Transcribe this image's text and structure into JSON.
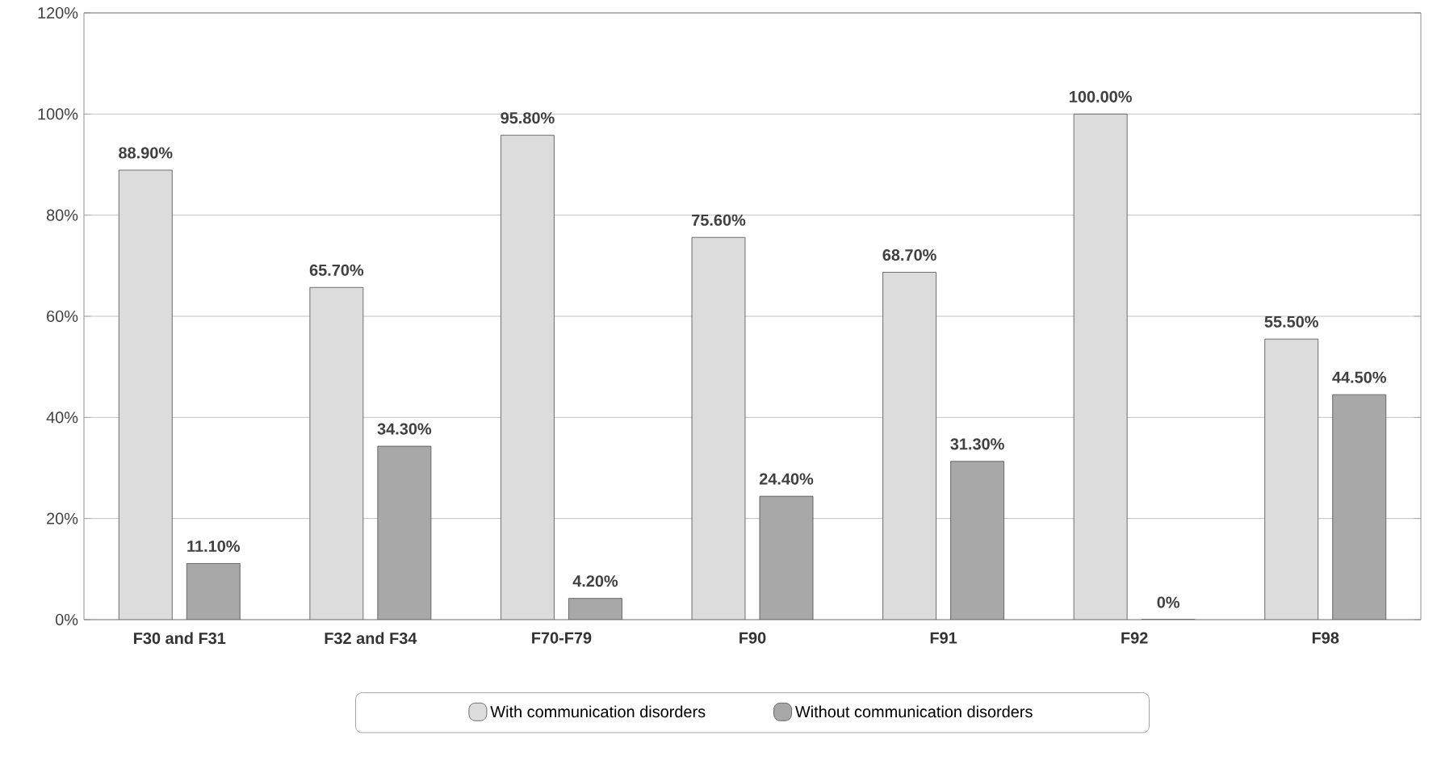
{
  "chart_data": {
    "type": "bar",
    "categories": [
      "F30 and F31",
      "F32 and F34",
      "F70-F79",
      "F90",
      "F91",
      "F92",
      "F98"
    ],
    "series": [
      {
        "name": "With communication disorders",
        "color": "#dcdcdc",
        "values": [
          88.9,
          65.7,
          95.8,
          75.6,
          68.7,
          100.0,
          55.5
        ],
        "value_labels": [
          "88.90%",
          "65.70%",
          "95.80%",
          "75.60%",
          "68.70%",
          "100.00%",
          "55.50%"
        ]
      },
      {
        "name": "Without communication disorders",
        "color": "#a8a8a8",
        "values": [
          11.1,
          34.3,
          4.2,
          24.4,
          31.3,
          0,
          44.5
        ],
        "value_labels": [
          "11.10%",
          "34.30%",
          "4.20%",
          "24.40%",
          "31.30%",
          "0%",
          "44.50%"
        ]
      }
    ],
    "ylim": [
      0,
      120
    ],
    "yticks": [
      {
        "value": 0,
        "label": "0%"
      },
      {
        "value": 20,
        "label": "20%"
      },
      {
        "value": 40,
        "label": "40%"
      },
      {
        "value": 60,
        "label": "60%"
      },
      {
        "value": 80,
        "label": "80%"
      },
      {
        "value": 100,
        "label": "100%"
      },
      {
        "value": 120,
        "label": "120%"
      }
    ],
    "grid": "y",
    "legend": "bottom"
  }
}
